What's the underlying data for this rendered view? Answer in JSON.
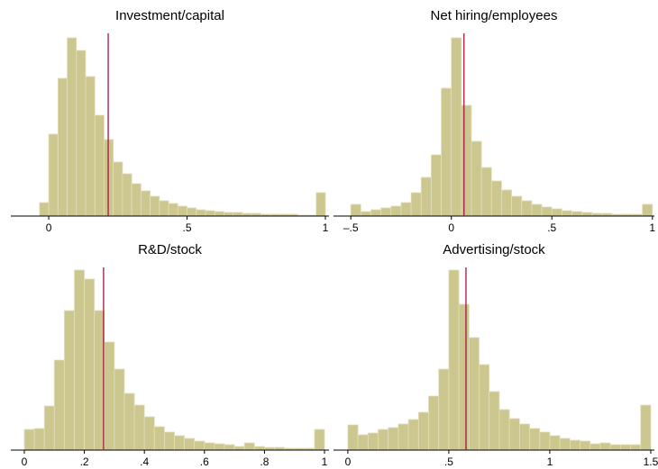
{
  "chart_data": [
    {
      "type": "histogram",
      "title": "Investment/capital",
      "bins": [
        -0.0333,
        0,
        0.0333,
        0.0667,
        0.1,
        0.1333,
        0.1667,
        0.2,
        0.2333,
        0.2667,
        0.3,
        0.3333,
        0.3667,
        0.4,
        0.4333,
        0.4667,
        0.5,
        0.5333,
        0.5667,
        0.6,
        0.6333,
        0.6667,
        0.7,
        0.7333,
        0.7667,
        0.8,
        0.8333,
        0.8667,
        0.9,
        0.9333,
        0.9667,
        1.0
      ],
      "counts": [
        15,
        91,
        153,
        198,
        184,
        155,
        112,
        85,
        60,
        47,
        36,
        28,
        22,
        17,
        14,
        11,
        9,
        7,
        6,
        5,
        4,
        4,
        3,
        3,
        2,
        2,
        2,
        2,
        1,
        1,
        26
      ],
      "color": "#ccc68f",
      "vline": 0.215,
      "vline_color": "#a3173f",
      "xlim": [
        -0.137,
        1.013
      ],
      "ylim": [
        0,
        210
      ],
      "xticks": [
        0,
        {
          "value": 0.5,
          "label": ".5"
        },
        1
      ]
    },
    {
      "type": "histogram",
      "title": "Net hiring/employees",
      "bins": [
        -0.5,
        -0.45,
        -0.4,
        -0.35,
        -0.3,
        -0.25,
        -0.2,
        -0.15,
        -0.1,
        -0.05,
        0,
        0.05,
        0.1,
        0.15,
        0.2,
        0.25,
        0.3,
        0.35,
        0.4,
        0.45,
        0.5,
        0.55,
        0.6,
        0.65,
        0.7,
        0.75,
        0.8,
        0.85,
        0.9,
        0.95,
        1.0
      ],
      "counts": [
        13,
        5,
        7,
        9,
        11,
        15,
        26,
        43,
        68,
        142,
        198,
        123,
        83,
        54,
        39,
        29,
        22,
        17,
        13,
        10,
        8,
        6,
        5,
        4,
        3,
        3,
        2,
        2,
        2,
        13
      ],
      "color": "#ccc68f",
      "vline": 0.063,
      "vline_color": "#a3173f",
      "xlim": [
        -0.586,
        1.01
      ],
      "ylim": [
        0,
        210
      ],
      "xticks": [
        {
          "value": -0.5,
          "label": "–.5"
        },
        0,
        {
          "value": 0.5,
          "label": ".5"
        },
        1
      ]
    },
    {
      "type": "histogram",
      "title": "R&D/stock",
      "bins": [
        0,
        0.0333,
        0.0667,
        0.1,
        0.1333,
        0.1667,
        0.2,
        0.2333,
        0.2667,
        0.3,
        0.3333,
        0.3667,
        0.4,
        0.4333,
        0.4667,
        0.5,
        0.5333,
        0.5667,
        0.6,
        0.6333,
        0.6667,
        0.7,
        0.7333,
        0.7667,
        0.8,
        0.8333,
        0.8667,
        0.9,
        0.9333,
        0.9667,
        1.0
      ],
      "counts": [
        23,
        24,
        49,
        100,
        155,
        200,
        190,
        155,
        120,
        90,
        63,
        50,
        37,
        26,
        20,
        16,
        13,
        10,
        8,
        7,
        6,
        4,
        8,
        4,
        3,
        3,
        2,
        2,
        2,
        23
      ],
      "color": "#ccc68f",
      "vline": 0.264,
      "vline_color": "#a3173f",
      "xlim": [
        -0.045,
        1.015
      ],
      "ylim": [
        0,
        210
      ],
      "xticks": [
        0,
        {
          "value": 0.2,
          "label": ".2"
        },
        {
          "value": 0.4,
          "label": ".4"
        },
        {
          "value": 0.6,
          "label": ".6"
        },
        {
          "value": 0.8,
          "label": ".8"
        },
        1
      ]
    },
    {
      "type": "histogram",
      "title": "Advertising/stock",
      "bins": [
        0,
        0.05,
        0.1,
        0.15,
        0.2,
        0.25,
        0.3,
        0.35,
        0.4,
        0.45,
        0.5,
        0.55,
        0.6,
        0.65,
        0.7,
        0.75,
        0.8,
        0.85,
        0.9,
        0.95,
        1.0,
        1.05,
        1.1,
        1.15,
        1.2,
        1.25,
        1.3,
        1.35,
        1.4,
        1.45,
        1.5
      ],
      "counts": [
        28,
        17,
        19,
        23,
        25,
        29,
        34,
        42,
        60,
        90,
        200,
        162,
        125,
        95,
        65,
        45,
        35,
        29,
        24,
        20,
        16,
        13,
        11,
        10,
        7,
        8,
        6,
        6,
        6,
        50
      ],
      "color": "#ccc68f",
      "vline": 0.585,
      "vline_color": "#a3173f",
      "xlim": [
        -0.071,
        1.518
      ],
      "ylim": [
        0,
        210
      ],
      "xticks": [
        0,
        {
          "value": 0.5,
          "label": ".5"
        },
        1,
        1.5
      ]
    }
  ]
}
